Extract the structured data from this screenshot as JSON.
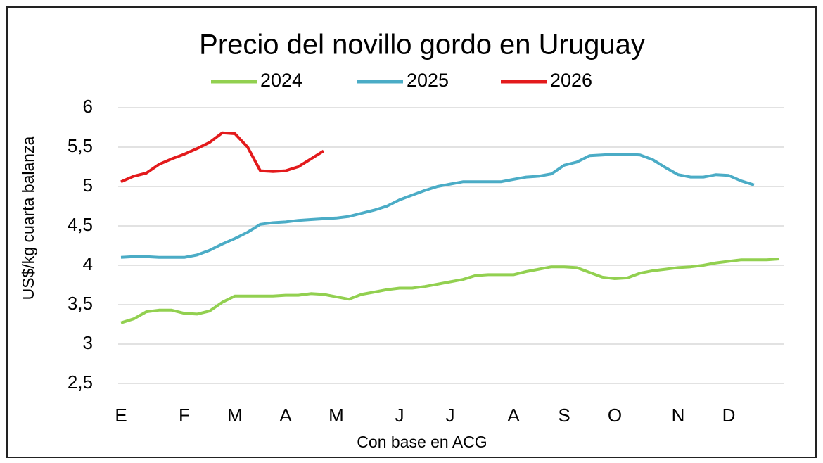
{
  "chart_data": {
    "type": "line",
    "title": "Precio del novillo gordo en Uruguay",
    "y_label": "US$/kg cuarta balanza",
    "x_label": "Con base en ACG",
    "categories": [
      "E",
      null,
      null,
      null,
      null,
      "F",
      null,
      null,
      null,
      "M",
      null,
      null,
      null,
      "A",
      null,
      null,
      null,
      "M",
      null,
      null,
      null,
      null,
      "J",
      null,
      null,
      null,
      "J",
      null,
      null,
      null,
      null,
      "A",
      null,
      null,
      null,
      "S",
      null,
      null,
      null,
      "O",
      null,
      null,
      null,
      null,
      "N",
      null,
      null,
      null,
      "D",
      null,
      null,
      null,
      null
    ],
    "series": [
      {
        "name": "2024",
        "color": "#92d050",
        "values": [
          3.27,
          3.32,
          3.41,
          3.43,
          3.43,
          3.39,
          3.38,
          3.42,
          3.53,
          3.61,
          3.61,
          3.61,
          3.61,
          3.62,
          3.62,
          3.64,
          3.63,
          3.6,
          3.57,
          3.63,
          3.66,
          3.69,
          3.71,
          3.71,
          3.73,
          3.76,
          3.79,
          3.82,
          3.87,
          3.88,
          3.88,
          3.88,
          3.92,
          3.95,
          3.98,
          3.98,
          3.97,
          3.91,
          3.85,
          3.83,
          3.84,
          3.9,
          3.93,
          3.95,
          3.97,
          3.98,
          4.0,
          4.03,
          4.05,
          4.07,
          4.07,
          4.07,
          4.08
        ]
      },
      {
        "name": "2025",
        "color": "#4bacc6",
        "values": [
          4.1,
          4.11,
          4.11,
          4.1,
          4.1,
          4.1,
          4.13,
          4.19,
          4.27,
          4.34,
          4.42,
          4.52,
          4.54,
          4.55,
          4.57,
          4.58,
          4.59,
          4.6,
          4.62,
          4.66,
          4.7,
          4.75,
          4.83,
          4.89,
          4.95,
          5.0,
          5.03,
          5.06,
          5.06,
          5.06,
          5.06,
          5.09,
          5.12,
          5.13,
          5.16,
          5.27,
          5.31,
          5.39,
          5.4,
          5.41,
          5.41,
          5.4,
          5.34,
          5.24,
          5.15,
          5.12,
          5.12,
          5.15,
          5.14,
          5.07,
          5.02,
          null,
          null
        ]
      },
      {
        "name": "2026",
        "color": "#e31a1c",
        "values": [
          5.06,
          5.13,
          5.17,
          5.28,
          5.35,
          5.41,
          5.48,
          5.56,
          5.68,
          5.67,
          5.5,
          5.2,
          5.19,
          5.2,
          5.25,
          5.35,
          5.45,
          null,
          null,
          null,
          null,
          null,
          null,
          null,
          null,
          null,
          null,
          null,
          null,
          null,
          null,
          null,
          null,
          null,
          null,
          null,
          null,
          null,
          null,
          null,
          null,
          null,
          null,
          null,
          null,
          null,
          null,
          null,
          null,
          null,
          null,
          null,
          null
        ]
      }
    ],
    "ylim": [
      2.5,
      6
    ],
    "yticks": [
      {
        "value": 2.5,
        "label": "2,5"
      },
      3,
      {
        "value": 3.5,
        "label": "3,5"
      },
      4,
      {
        "value": 4.5,
        "label": "4,5"
      },
      5,
      {
        "value": 5.5,
        "label": "5,5"
      },
      6
    ],
    "grid": true
  }
}
